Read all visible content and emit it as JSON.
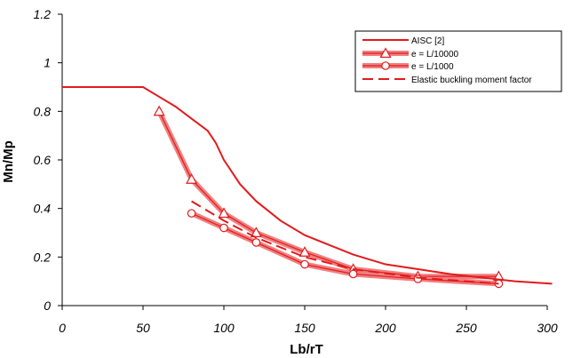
{
  "chart_data": {
    "type": "line",
    "xlabel": "Lb/rT",
    "ylabel": "Mn/Mp",
    "xlim": [
      0,
      300
    ],
    "ylim": [
      0,
      1.2
    ],
    "x_ticks": [
      "0",
      "50",
      "100",
      "150",
      "200",
      "250",
      "300"
    ],
    "y_ticks": [
      "0",
      "0.2",
      "0.4",
      "0.6",
      "0.8",
      "1",
      "1.2"
    ],
    "grid": false,
    "legend_position": "top-right",
    "colors": {
      "series": "#e31a1c",
      "band": "#f08080"
    },
    "series": [
      {
        "name": "AISC [2]",
        "style": "solid",
        "marker": "none",
        "x": [
          0,
          50,
          60,
          70,
          80,
          90,
          95,
          100,
          110,
          120,
          135,
          150,
          165,
          180,
          200,
          220,
          240,
          260,
          280,
          303
        ],
        "y": [
          0.9,
          0.9,
          0.86,
          0.82,
          0.77,
          0.72,
          0.67,
          0.6,
          0.5,
          0.43,
          0.35,
          0.29,
          0.25,
          0.21,
          0.17,
          0.15,
          0.13,
          0.115,
          0.1,
          0.09
        ]
      },
      {
        "name": "e = L/10000",
        "style": "band",
        "marker": "triangle",
        "x": [
          60,
          80,
          100,
          120,
          150,
          180,
          220,
          270
        ],
        "y": [
          0.8,
          0.52,
          0.38,
          0.3,
          0.22,
          0.15,
          0.12,
          0.12
        ]
      },
      {
        "name": "e = L/1000",
        "style": "band",
        "marker": "circle",
        "x": [
          80,
          100,
          120,
          150,
          180,
          220,
          270
        ],
        "y": [
          0.38,
          0.32,
          0.26,
          0.17,
          0.13,
          0.11,
          0.09
        ]
      },
      {
        "name": "Elastic buckling moment factor",
        "style": "dashed",
        "marker": "none",
        "x": [
          80,
          100,
          120,
          150,
          180,
          220,
          270
        ],
        "y": [
          0.43,
          0.35,
          0.28,
          0.2,
          0.15,
          0.115,
          0.09
        ]
      }
    ]
  }
}
